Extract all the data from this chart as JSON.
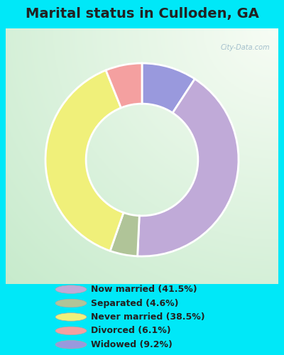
{
  "title": "Marital status in Culloden, GA",
  "wedge_sizes": [
    9.2,
    41.5,
    4.6,
    38.5,
    6.1
  ],
  "wedge_colors": [
    "#9999dd",
    "#c0aad8",
    "#b0c498",
    "#f0f07a",
    "#f4a0a0"
  ],
  "legend_labels": [
    "Now married (41.5%)",
    "Separated (4.6%)",
    "Never married (38.5%)",
    "Divorced (6.1%)",
    "Widowed (9.2%)"
  ],
  "legend_colors": [
    "#c0aad8",
    "#b0c498",
    "#f0f07a",
    "#f4a0a0",
    "#9999dd"
  ],
  "bg_cyan": "#00e8f8",
  "title_color": "#222222",
  "title_fontsize": 14,
  "watermark": "City-Data.com",
  "startangle": 90,
  "donut_width": 0.42
}
